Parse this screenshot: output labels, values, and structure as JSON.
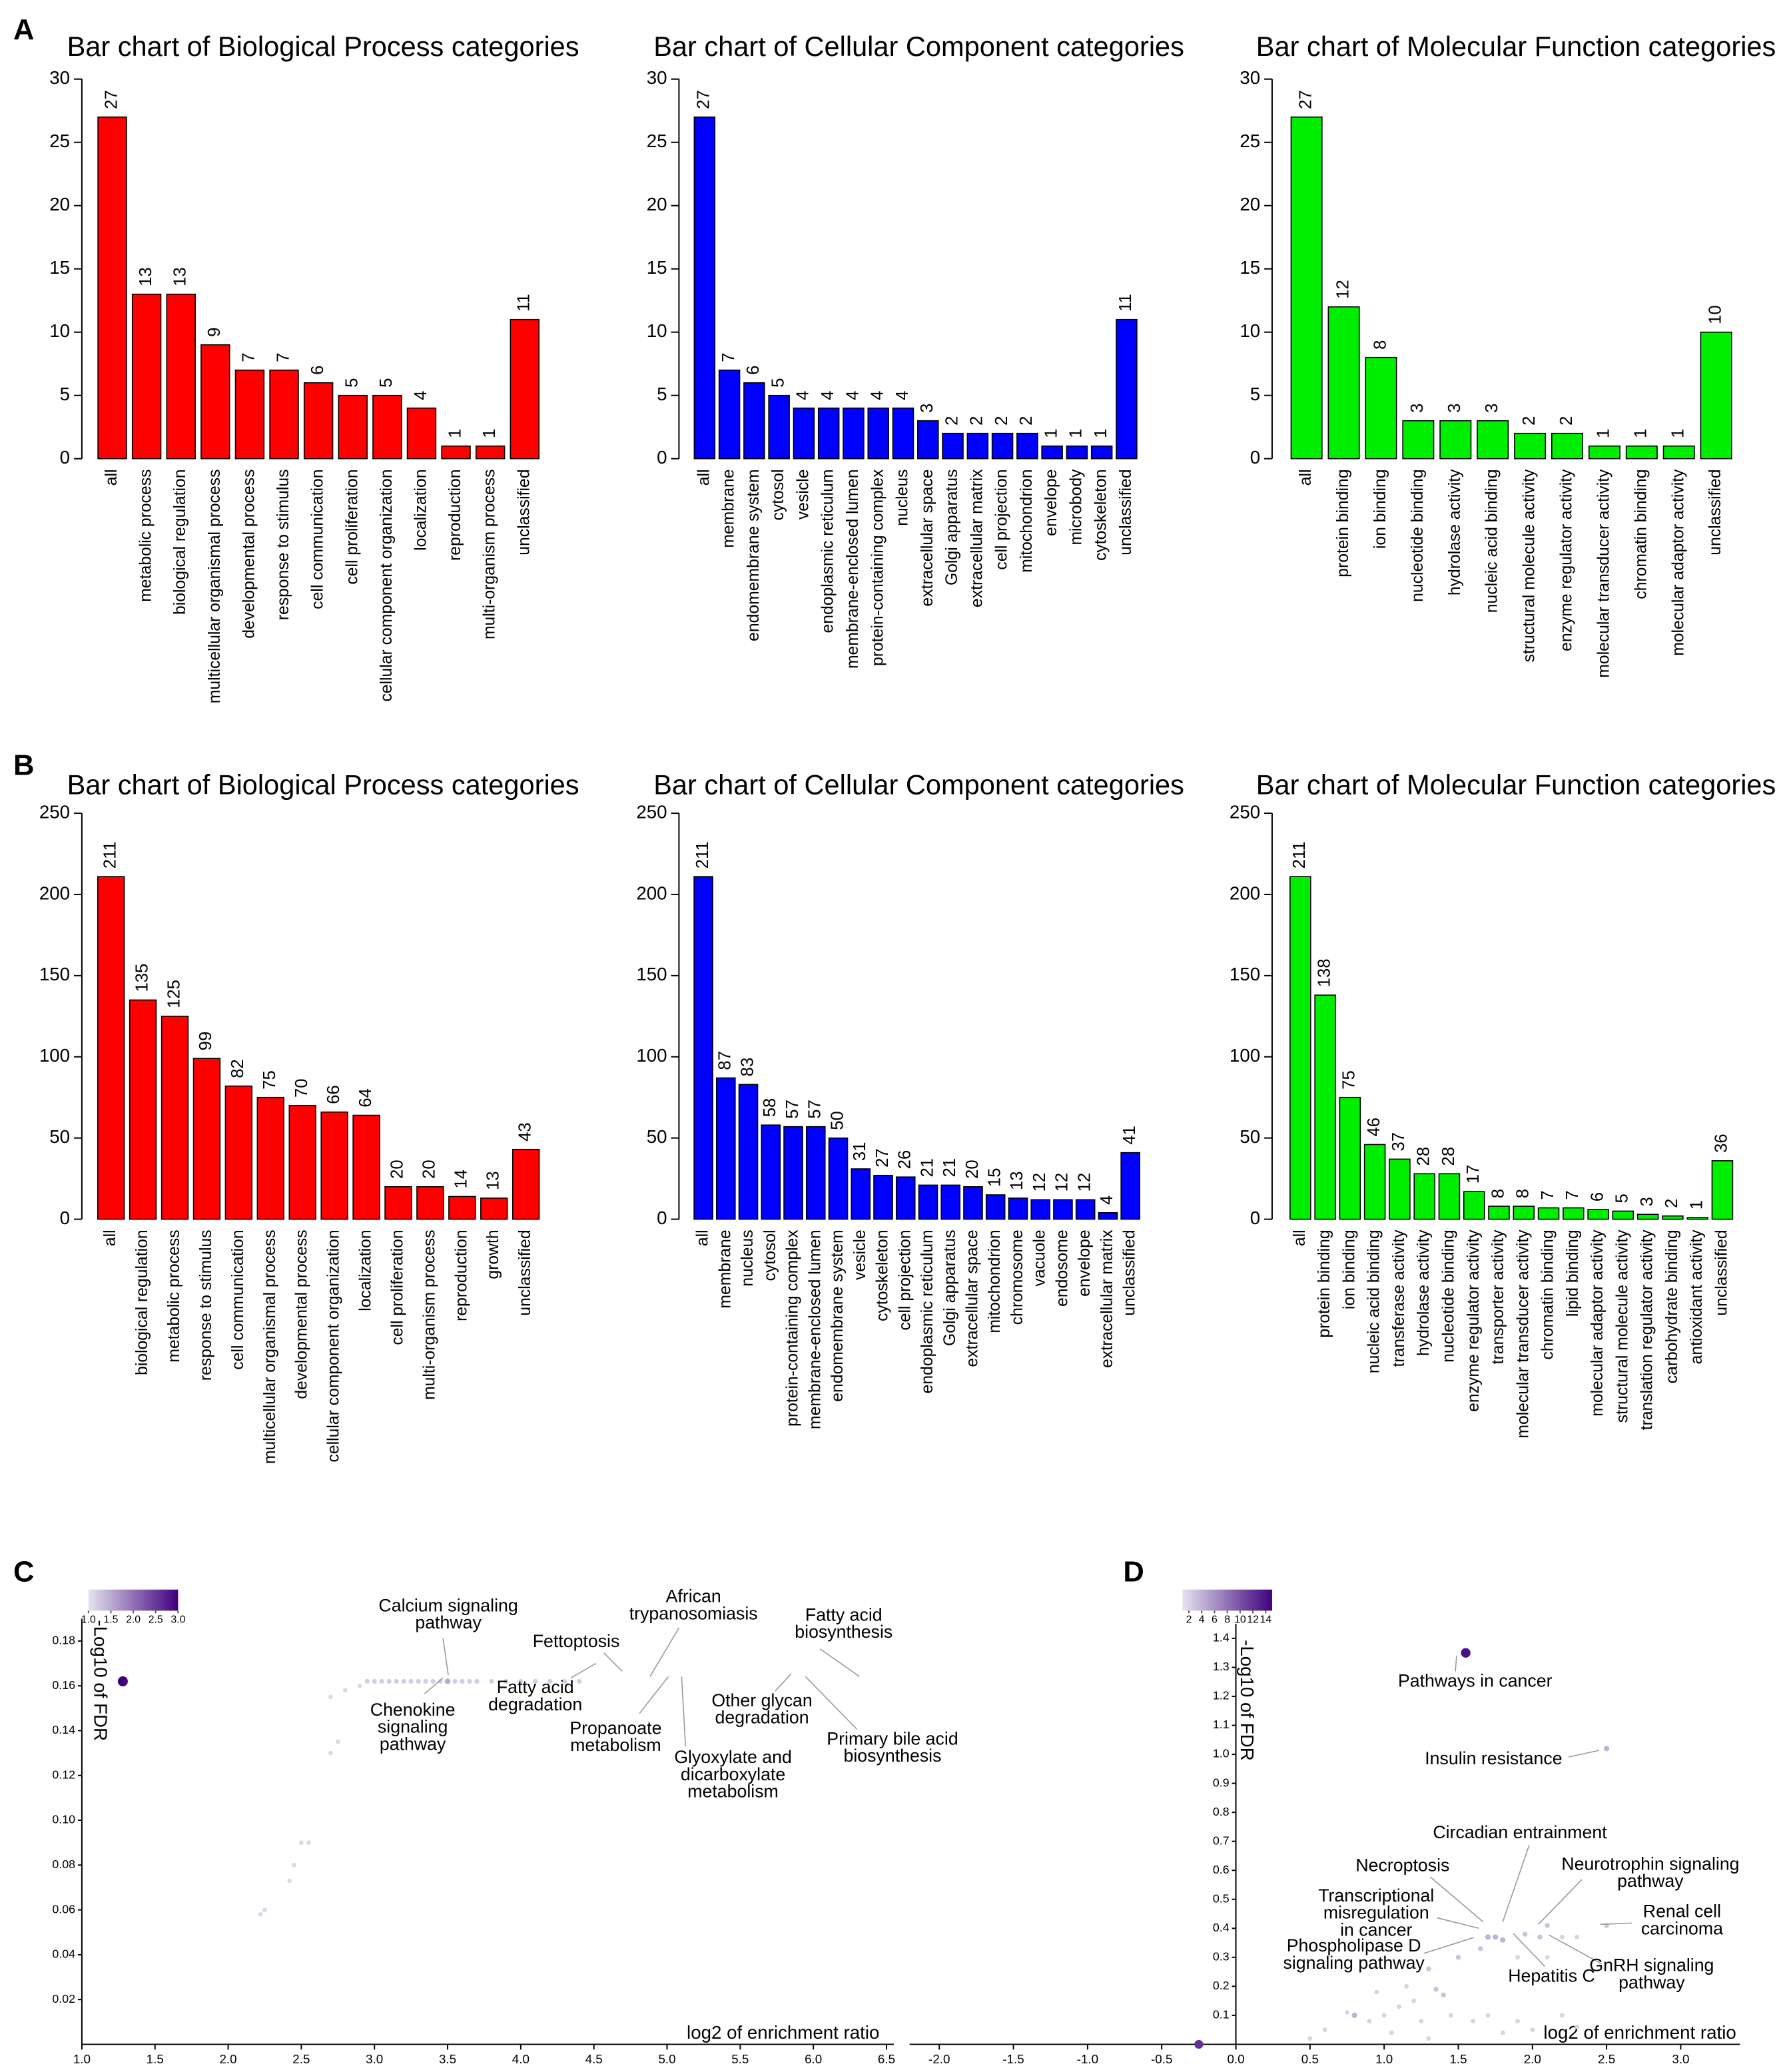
{
  "panels": [
    "A",
    "B",
    "C",
    "D"
  ],
  "chart_data": [
    {
      "type": "bar",
      "title": "Bar chart of Biological Process categories",
      "color": "#ff0000",
      "categories": [
        "all",
        "metabolic process",
        "biological regulation",
        "multicellular organismal process",
        "developmental process",
        "response to stimulus",
        "cell communication",
        "cell proliferation",
        "cellular component organization",
        "localization",
        "reproduction",
        "multi-organism process",
        "unclassified"
      ],
      "values": [
        27,
        13,
        13,
        9,
        7,
        7,
        6,
        5,
        5,
        4,
        1,
        1,
        11
      ],
      "ylim": [
        0,
        30
      ],
      "yticks": [
        0,
        5,
        10,
        15,
        20,
        25,
        30
      ]
    },
    {
      "type": "bar",
      "title": "Bar chart of Cellular Component categories",
      "color": "#0000ff",
      "categories": [
        "all",
        "membrane",
        "endomembrane system",
        "cytosol",
        "vesicle",
        "endoplasmic reticulum",
        "membrane-enclosed lumen",
        "protein-containing complex",
        "nucleus",
        "extracellular space",
        "Golgi apparatus",
        "extracellular matrix",
        "cell projection",
        "mitochondrion",
        "envelope",
        "microbody",
        "cytoskeleton",
        "unclassified"
      ],
      "values": [
        27,
        7,
        6,
        5,
        4,
        4,
        4,
        4,
        4,
        3,
        2,
        2,
        2,
        2,
        1,
        1,
        1,
        11
      ],
      "ylim": [
        0,
        30
      ],
      "yticks": [
        0,
        5,
        10,
        15,
        20,
        25,
        30
      ]
    },
    {
      "type": "bar",
      "title": "Bar chart of Molecular Function categories",
      "color": "#00ee00",
      "categories": [
        "all",
        "protein binding",
        "ion binding",
        "nucleotide binding",
        "hydrolase activity",
        "nucleic acid binding",
        "structural molecule activity",
        "enzyme regulator activity",
        "molecular transducer activity",
        "chromatin binding",
        "molecular adaptor activity",
        "unclassified"
      ],
      "values": [
        27,
        12,
        8,
        3,
        3,
        3,
        2,
        2,
        1,
        1,
        1,
        10
      ],
      "ylim": [
        0,
        30
      ],
      "yticks": [
        0,
        5,
        10,
        15,
        20,
        25,
        30
      ]
    },
    {
      "type": "bar",
      "title": "Bar chart of Biological Process categories",
      "color": "#ff0000",
      "categories": [
        "all",
        "biological regulation",
        "metabolic process",
        "response to stimulus",
        "cell communication",
        "multicellular organismal process",
        "developmental process",
        "cellular component organization",
        "localization",
        "cell proliferation",
        "multi-organism process",
        "reproduction",
        "growth",
        "unclassified"
      ],
      "values": [
        211,
        135,
        125,
        99,
        82,
        75,
        70,
        66,
        64,
        20,
        20,
        14,
        13,
        43
      ],
      "ylim": [
        0,
        250
      ],
      "yticks": [
        0,
        50,
        100,
        150,
        200,
        250
      ]
    },
    {
      "type": "bar",
      "title": "Bar chart of Cellular Component categories",
      "color": "#0000ff",
      "categories": [
        "all",
        "membrane",
        "nucleus",
        "cytosol",
        "protein-containing complex",
        "membrane-enclosed lumen",
        "endomembrane system",
        "vesicle",
        "cytoskeleton",
        "cell projection",
        "endoplasmic reticulum",
        "Golgi apparatus",
        "extracellular space",
        "mitochondrion",
        "chromosome",
        "vacuole",
        "endosome",
        "envelope",
        "extracellular matrix",
        "unclassified"
      ],
      "values": [
        211,
        87,
        83,
        58,
        57,
        57,
        50,
        31,
        27,
        26,
        21,
        21,
        20,
        15,
        13,
        12,
        12,
        12,
        4,
        41
      ],
      "ylim": [
        0,
        250
      ],
      "yticks": [
        0,
        50,
        100,
        150,
        200,
        250
      ]
    },
    {
      "type": "bar",
      "title": "Bar chart of Molecular Function categories",
      "color": "#00ee00",
      "categories": [
        "all",
        "protein binding",
        "ion binding",
        "nucleic acid binding",
        "transferase activity",
        "hydrolase activity",
        "nucleotide binding",
        "enzyme regulator activity",
        "transporter activity",
        "molecular transducer activity",
        "chromatin binding",
        "lipid binding",
        "molecular adaptor activity",
        "structural molecule activity",
        "translation regulator activity",
        "carbohydrate binding",
        "antioxidant activity",
        "unclassified"
      ],
      "values": [
        211,
        138,
        75,
        46,
        37,
        28,
        28,
        17,
        8,
        8,
        7,
        7,
        6,
        5,
        3,
        2,
        1,
        36
      ],
      "ylim": [
        0,
        250
      ],
      "yticks": [
        0,
        50,
        100,
        150,
        200,
        250
      ]
    },
    {
      "type": "scatter",
      "xlabel": "log2 of enrichment ratio",
      "ylabel": "-Log10 of FDR",
      "colormap": [
        "#e4e3ef",
        "#3f007d"
      ],
      "clim": [
        1,
        3
      ],
      "cticks": [
        {
          "value": 1,
          "label": "1.0"
        },
        1.5,
        {
          "value": 2,
          "label": "2.0"
        },
        2.5,
        {
          "value": 3,
          "label": "3.0"
        }
      ],
      "x": [
        1.28,
        2.95,
        3.0,
        3.05,
        3.1,
        3.15,
        3.2,
        3.25,
        3.3,
        3.35,
        3.4,
        3.45,
        3.5,
        3.55,
        3.6,
        3.65,
        3.7,
        3.8,
        3.9,
        4.0,
        4.1,
        4.2,
        4.3,
        4.4,
        2.8,
        2.9,
        2.7,
        2.7,
        2.75,
        2.5,
        2.55,
        2.45,
        2.42,
        2.22,
        2.25
      ],
      "y": [
        0.162,
        0.162,
        0.162,
        0.162,
        0.162,
        0.162,
        0.162,
        0.162,
        0.162,
        0.162,
        0.162,
        0.162,
        0.162,
        0.162,
        0.162,
        0.162,
        0.162,
        0.162,
        0.162,
        0.162,
        0.162,
        0.162,
        0.162,
        0.162,
        0.158,
        0.16,
        0.155,
        0.13,
        0.135,
        0.09,
        0.09,
        0.08,
        0.073,
        0.058,
        0.06
      ],
      "color_values": [
        3,
        1.2,
        1.2,
        1.2,
        1.2,
        1.2,
        1.2,
        1.2,
        1.2,
        1.2,
        1.2,
        1.2,
        1.5,
        1.2,
        1.2,
        1.2,
        1.2,
        1.2,
        1.2,
        1.2,
        1.2,
        1.2,
        1.2,
        1.2,
        1.1,
        1.1,
        1.1,
        1.1,
        1.1,
        1.1,
        1.1,
        1.1,
        1.1,
        1.1,
        1.1
      ],
      "xlim": [
        1,
        6.55
      ],
      "xticks": [
        {
          "value": 1,
          "label": "1.0"
        },
        1.5,
        {
          "value": 2,
          "label": "2.0"
        },
        2.5,
        {
          "value": 3,
          "label": "3.0"
        },
        3.5,
        {
          "value": 4,
          "label": "4.0"
        },
        4.5,
        {
          "value": 5,
          "label": "5.0"
        },
        5.5,
        {
          "value": 6,
          "label": "6.0"
        },
        6.5
      ],
      "ylim": [
        0,
        0.19
      ],
      "yticks": [
        0.02,
        0.04,
        0.06,
        0.08,
        {
          "value": 0.1,
          "label": "0.10"
        },
        0.12,
        0.14,
        0.16,
        0.18
      ],
      "annotations": [
        {
          "text": [
            "Calcium signaling",
            "pathway"
          ]
        },
        {
          "text": [
            "Fettoptosis"
          ]
        },
        {
          "text": [
            "African",
            "trypanosomiasis"
          ]
        },
        {
          "text": [
            "Fatty acid",
            "biosynthesis"
          ]
        },
        {
          "text": [
            "Chenokine",
            "signaling",
            "pathway"
          ]
        },
        {
          "text": [
            "Fatty acid",
            "degradation"
          ]
        },
        {
          "text": [
            "Propanoate",
            "metabolism"
          ]
        },
        {
          "text": [
            "Glyoxylate and",
            "dicarboxylate",
            "metabolism"
          ]
        },
        {
          "text": [
            "Other glycan",
            "degradation"
          ]
        },
        {
          "text": [
            "Primary bile acid",
            "biosynthesis"
          ]
        }
      ]
    },
    {
      "type": "scatter",
      "xlabel": "log2 of enrichment ratio",
      "ylabel": "-Log10 of FDR",
      "colormap": [
        "#e4e3ef",
        "#3f007d"
      ],
      "clim": [
        1,
        15
      ],
      "cticks": [
        2,
        4,
        6,
        8,
        10,
        12,
        14
      ],
      "x": [
        1.55,
        2.5,
        2.5,
        2.1,
        2.05,
        2.2,
        1.95,
        1.7,
        1.75,
        1.8,
        1.65,
        1.5,
        1.3,
        1.35,
        1.4,
        1.2,
        1.1,
        0.8,
        0.75,
        -0.25,
        0.5,
        0.6,
        0.9,
        1.0,
        1.05,
        1.25,
        1.45,
        1.6,
        1.7,
        1.9,
        2.0,
        2.2,
        2.3,
        1.8,
        1.3,
        2.1,
        1.9,
        2.3,
        0.95,
        1.15
      ],
      "y": [
        1.35,
        1.02,
        0.41,
        0.41,
        0.37,
        0.37,
        0.38,
        0.37,
        0.37,
        0.36,
        0.33,
        0.3,
        0.26,
        0.19,
        0.17,
        0.15,
        0.13,
        0.1,
        0.11,
        0,
        0.02,
        0.05,
        0.08,
        0.1,
        0.04,
        0.08,
        0.1,
        0.08,
        0.1,
        0.08,
        0.05,
        0.1,
        0.06,
        0.04,
        0.02,
        0.3,
        0.3,
        0.37,
        0.18,
        0.2
      ],
      "color_values": [
        14,
        4,
        3,
        3,
        3,
        2,
        3,
        4,
        4,
        4,
        3,
        3,
        3,
        3,
        3,
        2,
        2,
        4,
        2,
        12,
        2,
        2,
        2,
        2,
        2,
        2,
        2,
        2,
        2,
        2,
        2,
        2,
        2,
        2,
        2,
        2,
        2,
        2,
        2,
        2
      ],
      "xlim": [
        -2.2,
        3.4
      ],
      "xticks": [
        {
          "value": -2,
          "label": "-2.0"
        },
        -1.5,
        {
          "value": -1,
          "label": "-1.0"
        },
        -0.5,
        {
          "value": 0,
          "label": "0.0"
        },
        0.5,
        {
          "value": 1,
          "label": "1.0"
        },
        1.5,
        {
          "value": 2,
          "label": "2.0"
        },
        2.5,
        {
          "value": 3,
          "label": "3.0"
        }
      ],
      "ylim": [
        0,
        1.45
      ],
      "yticks": [
        0.1,
        0.2,
        0.3,
        0.4,
        0.5,
        0.6,
        0.7,
        0.8,
        0.9,
        {
          "value": 1,
          "label": "1.0"
        },
        1.1,
        1.2,
        1.3,
        1.4
      ],
      "annotations": [
        {
          "text": [
            "Pathways in cancer"
          ]
        },
        {
          "text": [
            "Insulin resistance"
          ]
        },
        {
          "text": [
            "Circadian entrainment"
          ]
        },
        {
          "text": [
            "Necroptosis"
          ]
        },
        {
          "text": [
            "Neurotrophin signaling",
            "pathway"
          ]
        },
        {
          "text": [
            "Transcriptional",
            "misregulation",
            "in cancer"
          ]
        },
        {
          "text": [
            "Renal cell",
            "carcinoma"
          ]
        },
        {
          "text": [
            "Phospholipase D",
            "signaling pathway"
          ]
        },
        {
          "text": [
            "Hepatitis C"
          ]
        },
        {
          "text": [
            "GnRH signaling",
            "pathway"
          ]
        }
      ]
    }
  ]
}
